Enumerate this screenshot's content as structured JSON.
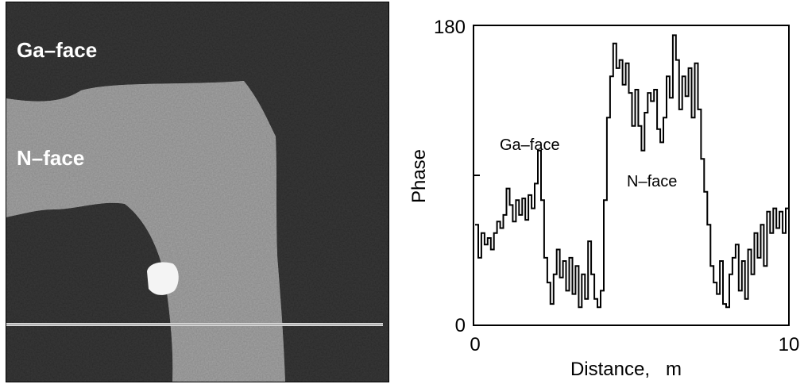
{
  "image_panel": {
    "label_top": "Ga–face",
    "label_mid": "N–face"
  },
  "chart_data": {
    "type": "line",
    "title": "",
    "xlabel": "Distance,   m",
    "ylabel": "Phase",
    "xlim": [
      0,
      10
    ],
    "ylim": [
      0,
      180
    ],
    "x_ticks": [
      "0",
      "10"
    ],
    "y_ticks": [
      "0",
      "180"
    ],
    "grid": false,
    "annotations": [
      {
        "text": "Ga–face",
        "x": 1.0,
        "y": 120
      },
      {
        "text": "N–face",
        "x": 4.8,
        "y": 96
      }
    ],
    "series": [
      {
        "values": [
          [
            0.0,
            60
          ],
          [
            0.1,
            40
          ],
          [
            0.2,
            55
          ],
          [
            0.3,
            48
          ],
          [
            0.4,
            52
          ],
          [
            0.5,
            45
          ],
          [
            0.6,
            55
          ],
          [
            0.7,
            62
          ],
          [
            0.8,
            58
          ],
          [
            0.9,
            66
          ],
          [
            1.0,
            82
          ],
          [
            1.1,
            72
          ],
          [
            1.2,
            62
          ],
          [
            1.3,
            75
          ],
          [
            1.4,
            66
          ],
          [
            1.5,
            76
          ],
          [
            1.6,
            63
          ],
          [
            1.7,
            78
          ],
          [
            1.8,
            70
          ],
          [
            1.9,
            85
          ],
          [
            2.0,
            105
          ],
          [
            2.1,
            75
          ],
          [
            2.2,
            40
          ],
          [
            2.3,
            25
          ],
          [
            2.4,
            12
          ],
          [
            2.5,
            30
          ],
          [
            2.6,
            45
          ],
          [
            2.7,
            28
          ],
          [
            2.8,
            38
          ],
          [
            2.9,
            20
          ],
          [
            3.0,
            40
          ],
          [
            3.1,
            18
          ],
          [
            3.2,
            35
          ],
          [
            3.3,
            10
          ],
          [
            3.4,
            30
          ],
          [
            3.5,
            15
          ],
          [
            3.6,
            50
          ],
          [
            3.7,
            30
          ],
          [
            3.8,
            15
          ],
          [
            3.9,
            10
          ],
          [
            4.0,
            20
          ],
          [
            4.1,
            75
          ],
          [
            4.2,
            125
          ],
          [
            4.3,
            150
          ],
          [
            4.4,
            170
          ],
          [
            4.5,
            155
          ],
          [
            4.6,
            160
          ],
          [
            4.7,
            145
          ],
          [
            4.8,
            158
          ],
          [
            4.9,
            140
          ],
          [
            5.0,
            120
          ],
          [
            5.1,
            142
          ],
          [
            5.2,
            120
          ],
          [
            5.3,
            105
          ],
          [
            5.4,
            128
          ],
          [
            5.5,
            140
          ],
          [
            5.6,
            135
          ],
          [
            5.7,
            142
          ],
          [
            5.8,
            118
          ],
          [
            5.9,
            110
          ],
          [
            6.0,
            125
          ],
          [
            6.1,
            150
          ],
          [
            6.2,
            137
          ],
          [
            6.3,
            175
          ],
          [
            6.4,
            160
          ],
          [
            6.5,
            130
          ],
          [
            6.6,
            150
          ],
          [
            6.7,
            138
          ],
          [
            6.8,
            155
          ],
          [
            6.9,
            125
          ],
          [
            7.0,
            158
          ],
          [
            7.1,
            130
          ],
          [
            7.2,
            100
          ],
          [
            7.3,
            80
          ],
          [
            7.4,
            60
          ],
          [
            7.5,
            35
          ],
          [
            7.6,
            25
          ],
          [
            7.7,
            18
          ],
          [
            7.8,
            38
          ],
          [
            7.9,
            12
          ],
          [
            8.0,
            10
          ],
          [
            8.1,
            30
          ],
          [
            8.2,
            40
          ],
          [
            8.3,
            48
          ],
          [
            8.4,
            20
          ],
          [
            8.5,
            38
          ],
          [
            8.6,
            15
          ],
          [
            8.7,
            45
          ],
          [
            8.8,
            30
          ],
          [
            8.9,
            55
          ],
          [
            9.0,
            40
          ],
          [
            9.1,
            60
          ],
          [
            9.2,
            35
          ],
          [
            9.3,
            68
          ],
          [
            9.4,
            55
          ],
          [
            9.5,
            70
          ],
          [
            9.6,
            58
          ],
          [
            9.7,
            68
          ],
          [
            9.8,
            55
          ],
          [
            9.9,
            70
          ],
          [
            10.0,
            65
          ]
        ]
      }
    ]
  }
}
